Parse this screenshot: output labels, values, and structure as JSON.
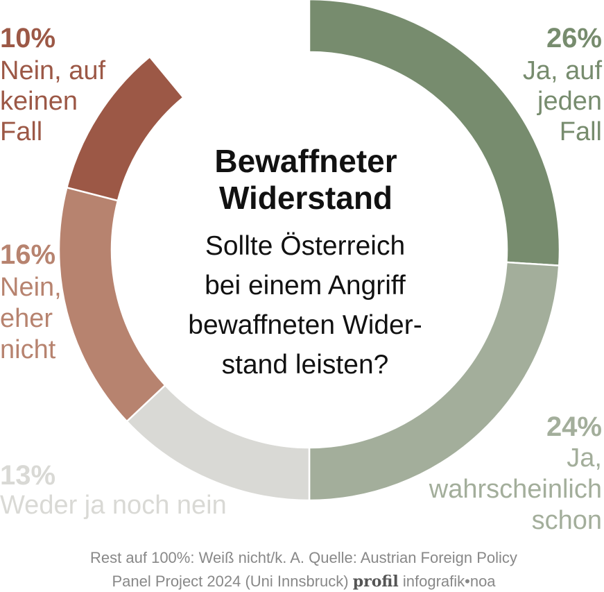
{
  "chart_data": {
    "type": "pie",
    "title_lines": [
      "Bewaffneter",
      "Widerstand"
    ],
    "subtitle_lines": [
      "Sollte Österreich",
      "bei einem Angriff",
      "bewaffneten Wider-",
      "stand leisten?"
    ],
    "slices": [
      {
        "label_lines": [
          "Ja, auf",
          "jeden",
          "Fall"
        ],
        "value": 26,
        "value_label": "26%",
        "color": "#778c6e"
      },
      {
        "label_lines": [
          "Ja,",
          "wahrscheinlich",
          "schon"
        ],
        "value": 24,
        "value_label": "24%",
        "color": "#a3ae9b"
      },
      {
        "label_lines": [
          "Weder ja noch nein"
        ],
        "value": 13,
        "value_label": "13%",
        "color": "#d9d9d5"
      },
      {
        "label_lines": [
          "Nein,",
          "eher",
          "nicht"
        ],
        "value": 16,
        "value_label": "16%",
        "color": "#b7836f"
      },
      {
        "label_lines": [
          "Nein, auf",
          "keinen",
          "Fall"
        ],
        "value": 10,
        "value_label": "10%",
        "color": "#9c5846"
      }
    ],
    "footer_lines": [
      "Rest auf 100%: Weiß nicht/k. A. Quelle: Austrian Foreign Policy",
      "Panel Project 2024 (Uni Innsbruck)"
    ],
    "brand": "profil",
    "credit": "infografik•noa"
  }
}
